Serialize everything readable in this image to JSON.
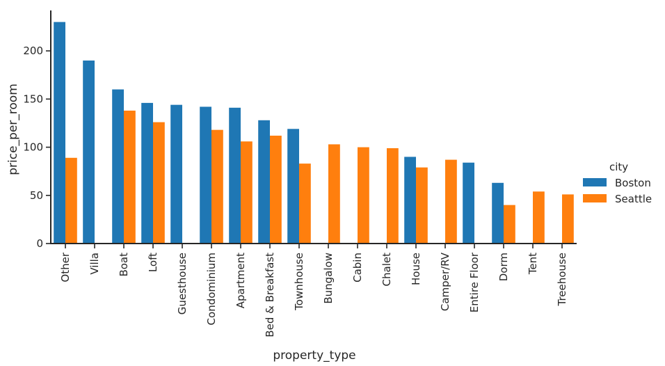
{
  "chart_data": {
    "type": "bar",
    "xlabel": "property_type",
    "ylabel": "price_per_room",
    "ylim": [
      0,
      242
    ],
    "yticks": [
      0,
      50,
      100,
      150,
      200
    ],
    "grid": false,
    "legend_position": "right",
    "legend_title": "city",
    "categories": [
      "Other",
      "Villa",
      "Boat",
      "Loft",
      "Guesthouse",
      "Condominium",
      "Apartment",
      "Bed & Breakfast",
      "Townhouse",
      "Bungalow",
      "Cabin",
      "Chalet",
      "House",
      "Camper/RV",
      "Entire Floor",
      "Dorm",
      "Tent",
      "Treehouse"
    ],
    "series": [
      {
        "name": "Boston",
        "color": "#1f77b4",
        "values": [
          230,
          190,
          160,
          146,
          144,
          142,
          141,
          128,
          119,
          null,
          null,
          null,
          90,
          null,
          84,
          63,
          null,
          null
        ]
      },
      {
        "name": "Seattle",
        "color": "#ff7f0e",
        "values": [
          89,
          null,
          138,
          126,
          null,
          118,
          106,
          112,
          83,
          103,
          100,
          99,
          79,
          87,
          null,
          40,
          54,
          51
        ]
      }
    ]
  }
}
